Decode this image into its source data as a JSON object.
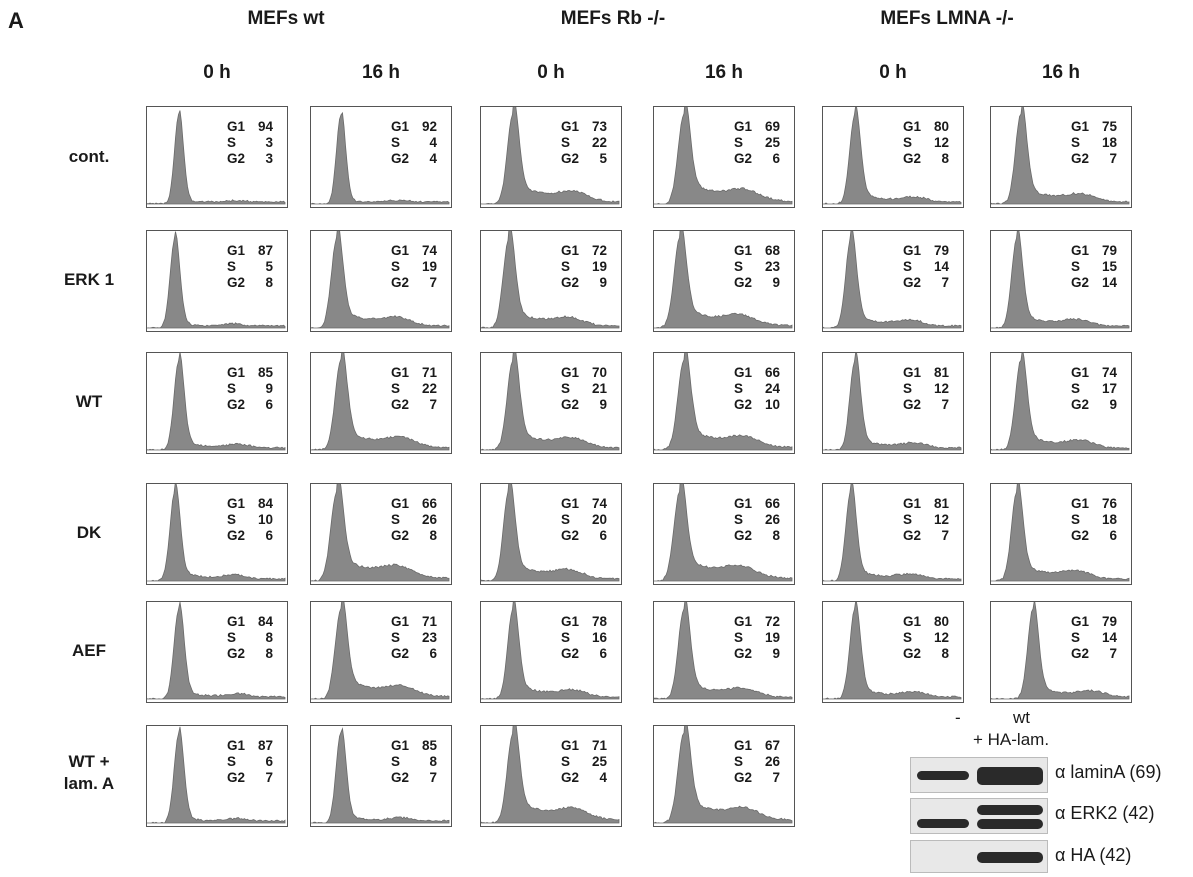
{
  "panel_letter": "A",
  "groups": [
    "MEFs wt",
    "MEFs Rb -/-",
    "MEFs LMNA -/-"
  ],
  "time_labels": [
    "0 h",
    "16 h",
    "0 h",
    "16 h",
    "0 h",
    "16 h"
  ],
  "rows": [
    {
      "label": "cont.",
      "cells": [
        [
          "94",
          "3",
          "3"
        ],
        [
          "92",
          "4",
          "4"
        ],
        [
          "73",
          "22",
          "5"
        ],
        [
          "69",
          "25",
          "6"
        ],
        [
          "80",
          "12",
          "8"
        ],
        [
          "75",
          "18",
          "7"
        ]
      ]
    },
    {
      "label": "ERK 1",
      "cells": [
        [
          "87",
          "5",
          "8"
        ],
        [
          "74",
          "19",
          "7"
        ],
        [
          "72",
          "19",
          "9"
        ],
        [
          "68",
          "23",
          "9"
        ],
        [
          "79",
          "14",
          "7"
        ],
        [
          "79",
          "15",
          "14"
        ]
      ]
    },
    {
      "label": "WT",
      "cells": [
        [
          "85",
          "9",
          "6"
        ],
        [
          "71",
          "22",
          "7"
        ],
        [
          "70",
          "21",
          "9"
        ],
        [
          "66",
          "24",
          "10"
        ],
        [
          "81",
          "12",
          "7"
        ],
        [
          "74",
          "17",
          "9"
        ]
      ]
    },
    {
      "label": "DK",
      "cells": [
        [
          "84",
          "10",
          "6"
        ],
        [
          "66",
          "26",
          "8"
        ],
        [
          "74",
          "20",
          "6"
        ],
        [
          "66",
          "26",
          "8"
        ],
        [
          "81",
          "12",
          "7"
        ],
        [
          "76",
          "18",
          "6"
        ]
      ]
    },
    {
      "label": "AEF",
      "cells": [
        [
          "84",
          "8",
          "8"
        ],
        [
          "71",
          "23",
          "6"
        ],
        [
          "78",
          "16",
          "6"
        ],
        [
          "72",
          "19",
          "9"
        ],
        [
          "80",
          "12",
          "8"
        ],
        [
          "79",
          "14",
          "7"
        ]
      ]
    },
    {
      "label_line1": "WT +",
      "label_line2": "lam. A",
      "cells": [
        [
          "87",
          "6",
          "7"
        ],
        [
          "85",
          "8",
          "7"
        ],
        [
          "71",
          "25",
          "4"
        ],
        [
          "67",
          "26",
          "7"
        ]
      ]
    }
  ],
  "stat_keys": [
    "G1",
    "S",
    "G2"
  ],
  "blot": {
    "lane1": "-",
    "lane2_line1": "wt",
    "lane2_line2": "+ HA-lam.",
    "labels": [
      "α laminA (69)",
      "α ERK2 (42)",
      "α HA (42)"
    ]
  },
  "colors": {
    "histogram_fill": "#888888",
    "histogram_stroke": "#6a6a6a"
  }
}
